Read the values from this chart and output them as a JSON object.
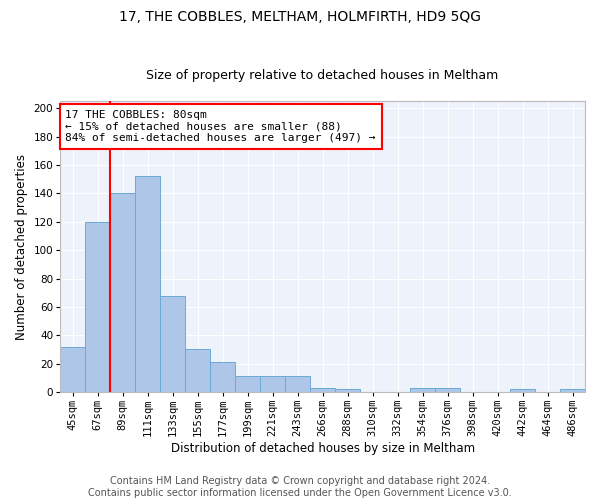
{
  "title": "17, THE COBBLES, MELTHAM, HOLMFIRTH, HD9 5QG",
  "subtitle": "Size of property relative to detached houses in Meltham",
  "xlabel": "Distribution of detached houses by size in Meltham",
  "ylabel": "Number of detached properties",
  "bar_color": "#aec6e8",
  "bar_edge_color": "#6aaad4",
  "categories": [
    "45sqm",
    "67sqm",
    "89sqm",
    "111sqm",
    "133sqm",
    "155sqm",
    "177sqm",
    "199sqm",
    "221sqm",
    "243sqm",
    "266sqm",
    "288sqm",
    "310sqm",
    "332sqm",
    "354sqm",
    "376sqm",
    "398sqm",
    "420sqm",
    "442sqm",
    "464sqm",
    "486sqm"
  ],
  "values": [
    32,
    120,
    140,
    152,
    68,
    30,
    21,
    11,
    11,
    11,
    3,
    2,
    0,
    0,
    3,
    3,
    0,
    0,
    2,
    0,
    2
  ],
  "ylim": [
    0,
    205
  ],
  "yticks": [
    0,
    20,
    40,
    60,
    80,
    100,
    120,
    140,
    160,
    180,
    200
  ],
  "vline_x": 1.5,
  "vline_color": "red",
  "annotation_text": "17 THE COBBLES: 80sqm\n← 15% of detached houses are smaller (88)\n84% of semi-detached houses are larger (497) →",
  "annotation_box_color": "white",
  "annotation_box_edge_color": "red",
  "footer_line1": "Contains HM Land Registry data © Crown copyright and database right 2024.",
  "footer_line2": "Contains public sector information licensed under the Open Government Licence v3.0.",
  "bg_color": "#eef2fb",
  "grid_color": "white",
  "title_fontsize": 10,
  "subtitle_fontsize": 9,
  "axis_label_fontsize": 8.5,
  "tick_fontsize": 7.5,
  "footer_fontsize": 7,
  "annotation_fontsize": 8
}
